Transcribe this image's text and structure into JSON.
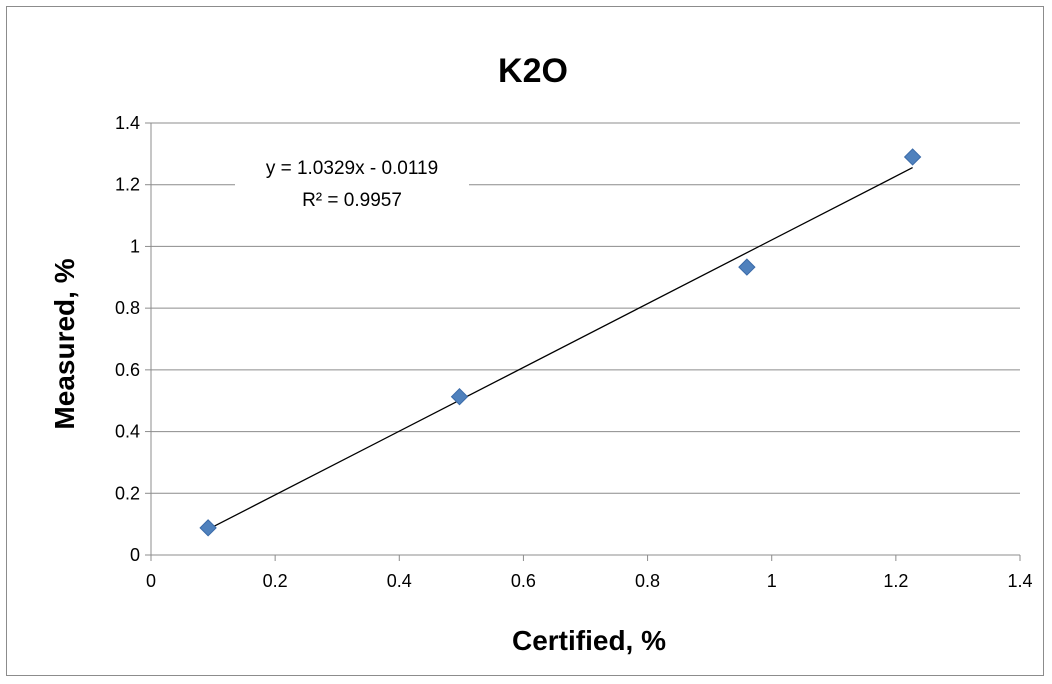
{
  "chart_data": {
    "type": "scatter",
    "title": "K2O",
    "xlabel": "Certified, %",
    "ylabel": "Measured, %",
    "xlim": [
      0,
      1.4
    ],
    "ylim": [
      0,
      1.4
    ],
    "x_ticks": [
      "0",
      "0.2",
      "0.4",
      "0.6",
      "0.8",
      "1",
      "1.2",
      "1.4"
    ],
    "y_ticks": [
      "0",
      "0.2",
      "0.4",
      "0.6",
      "0.8",
      "1",
      "1.2",
      "1.4"
    ],
    "grid": "horizontal",
    "series": [
      {
        "points": [
          {
            "x": 0.092,
            "y": 0.088
          },
          {
            "x": 0.497,
            "y": 0.513
          },
          {
            "x": 0.96,
            "y": 0.933
          },
          {
            "x": 1.227,
            "y": 1.29
          }
        ],
        "color": "#4f81bd",
        "marker": "diamond"
      }
    ],
    "trendline": {
      "type": "linear",
      "slope": 1.0329,
      "intercept": -0.0119,
      "x_range": [
        0.092,
        1.227
      ],
      "color": "#000000",
      "equation": "y = 1.0329x - 0.0119",
      "r_squared": "R² = 0.9957"
    }
  }
}
